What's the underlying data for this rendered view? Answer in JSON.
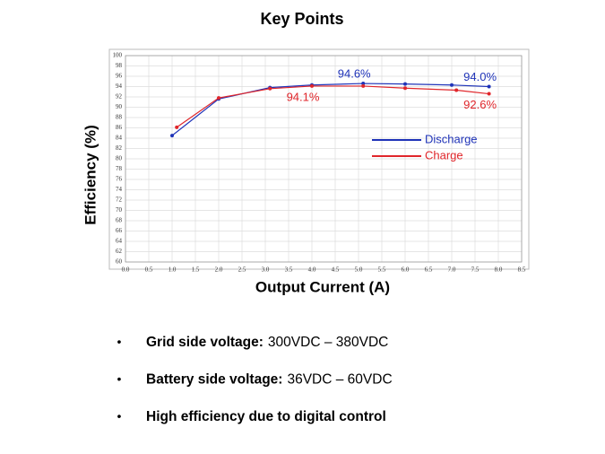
{
  "title": "Key Points",
  "chart_data": {
    "type": "line",
    "xlabel": "Output Current (A)",
    "ylabel": "Efficiency (%)",
    "xlim": [
      0,
      8.5
    ],
    "xticks": [
      {
        "value": 0,
        "label": "0.0"
      },
      0.5,
      {
        "value": 1,
        "label": "1.0"
      },
      1.5,
      {
        "value": 2,
        "label": "2.0"
      },
      2.5,
      {
        "value": 3,
        "label": "3.0"
      },
      3.5,
      {
        "value": 4,
        "label": "4.0"
      },
      4.5,
      {
        "value": 5,
        "label": "5.0"
      },
      5.5,
      {
        "value": 6,
        "label": "6.0"
      },
      6.5,
      {
        "value": 7,
        "label": "7.0"
      },
      7.5,
      {
        "value": 8,
        "label": "8.0"
      },
      8.5
    ],
    "ylim": [
      60,
      100
    ],
    "yticks": [
      60,
      62,
      64,
      66,
      68,
      70,
      72,
      74,
      76,
      78,
      80,
      82,
      84,
      86,
      88,
      90,
      92,
      94,
      96,
      98,
      100
    ],
    "grid": true,
    "legend": "right",
    "series": [
      {
        "name": "Discharge",
        "color": "#1f33b8",
        "x": [
          1.0,
          2.0,
          3.1,
          4.0,
          5.1,
          6.0,
          7.0,
          7.8
        ],
        "values": [
          84.5,
          91.6,
          93.8,
          94.3,
          94.6,
          94.5,
          94.3,
          94.0
        ],
        "value_labels": [
          null,
          null,
          null,
          null,
          "94.6%",
          null,
          null,
          "94.0%"
        ]
      },
      {
        "name": "Charge",
        "color": "#e0262b",
        "x": [
          1.1,
          2.0,
          3.1,
          4.0,
          5.1,
          6.0,
          7.1,
          7.8
        ],
        "values": [
          86.1,
          91.8,
          93.6,
          94.1,
          94.1,
          93.7,
          93.3,
          92.6
        ],
        "value_labels": [
          null,
          null,
          null,
          "94.1%",
          null,
          null,
          null,
          "92.6%"
        ]
      }
    ]
  },
  "bullets": [
    {
      "bold": "Grid side voltage:",
      "text": "300VDC – 380VDC"
    },
    {
      "bold": "Battery side voltage:",
      "text": "36VDC – 60VDC"
    },
    {
      "bold": "High efficiency due to digital control"
    }
  ]
}
